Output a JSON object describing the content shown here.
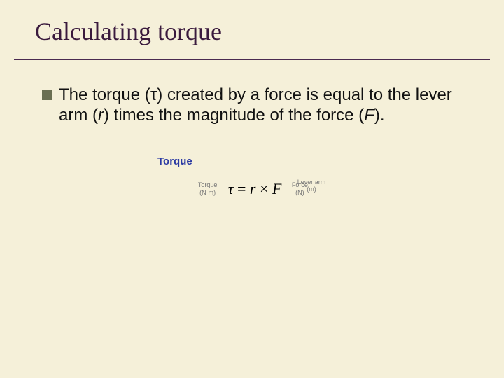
{
  "slide": {
    "title": "Calculating torque",
    "bullet": {
      "pre": "The torque (",
      "symbol": "τ",
      "mid1": ") created by a force is equal to the lever arm (",
      "var_r": "r",
      "mid2": ") times the magnitude of the force (",
      "var_F": "F",
      "post": ")."
    }
  },
  "formula": {
    "heading": "Torque",
    "top_label": "Lever arm",
    "top_unit": "(m)",
    "left_label": "Torque",
    "left_unit": "(N·m)",
    "right_label": "Force",
    "right_unit": "(N)",
    "equation": {
      "lhs": "τ",
      "eq": " = ",
      "r": "r",
      "times": " × ",
      "F": "F"
    },
    "colors": {
      "heading": "#2b3aa3",
      "annotation": "#777777",
      "equation": "#000000"
    }
  },
  "style": {
    "background": "#f5f0d9",
    "title_color": "#3a1a3d",
    "underline_color": "#4a2a50",
    "bullet_color": "#6a6f52"
  }
}
